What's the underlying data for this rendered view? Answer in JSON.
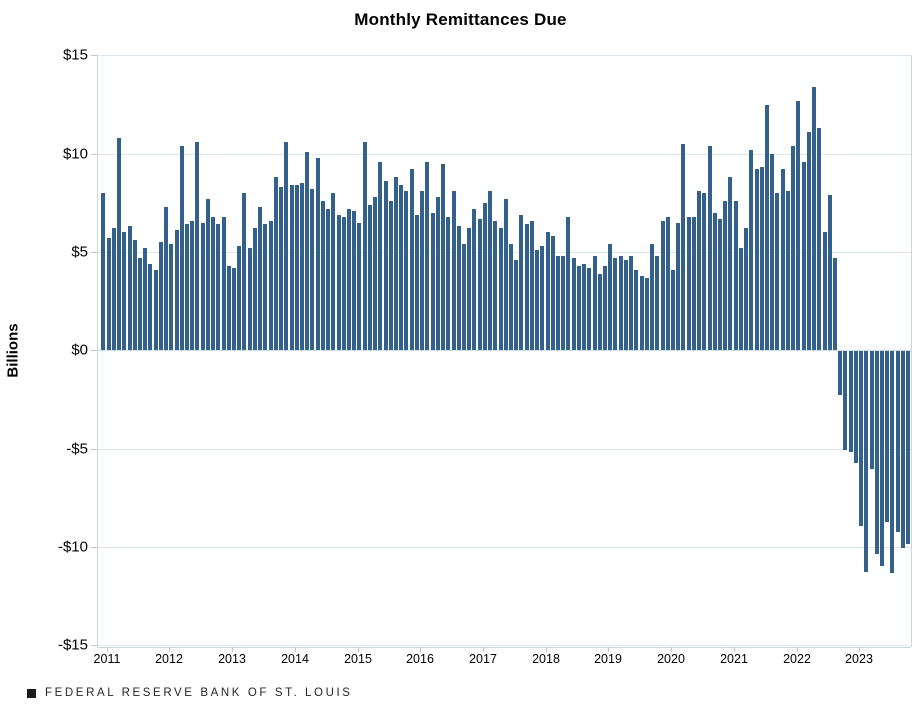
{
  "title": "Monthly Remittances Due",
  "y_axis": {
    "label": "Billions",
    "tick_labels": [
      "$15",
      "$10",
      "$5",
      "$0",
      "-$5",
      "-$10",
      "-$15"
    ],
    "tick_values": [
      15,
      10,
      5,
      0,
      -5,
      -10,
      -15
    ]
  },
  "x_axis": {
    "tick_labels": [
      "2011",
      "2012",
      "2013",
      "2014",
      "2015",
      "2016",
      "2017",
      "2018",
      "2019",
      "2020",
      "2021",
      "2022",
      "2023"
    ]
  },
  "footer": {
    "marker": "",
    "source": "FEDERAL RESERVE BANK OF ST. LOUIS"
  },
  "colors": {
    "bar": "#33618C",
    "grid": "#dce7ed",
    "frame": "#c9d7df",
    "text": "#000000",
    "background": "#ffffff"
  },
  "chart_data": {
    "type": "bar",
    "title": "Monthly Remittances Due",
    "xlabel": "",
    "ylabel": "Billions",
    "ylim": [
      -15,
      15
    ],
    "grid": "horizontal gridlines every 5 billion",
    "legend": "none",
    "units": "billions of dollars",
    "frequency": "monthly",
    "start_month": "2011-01",
    "end_month": "2023-11",
    "x_tick_labels": [
      "2011",
      "2012",
      "2013",
      "2014",
      "2015",
      "2016",
      "2017",
      "2018",
      "2019",
      "2020",
      "2021",
      "2022",
      "2023"
    ],
    "values": [
      8.0,
      5.7,
      6.2,
      10.8,
      6.0,
      6.3,
      5.6,
      4.7,
      5.2,
      4.4,
      4.1,
      5.5,
      7.3,
      5.4,
      6.1,
      10.4,
      6.4,
      6.6,
      10.6,
      6.5,
      7.7,
      6.8,
      6.4,
      6.8,
      4.3,
      4.2,
      5.3,
      8.0,
      5.2,
      6.2,
      7.3,
      6.4,
      6.6,
      8.8,
      8.3,
      10.6,
      8.4,
      8.4,
      8.5,
      10.1,
      8.2,
      9.8,
      7.6,
      7.2,
      8.0,
      6.9,
      6.8,
      7.2,
      7.1,
      6.5,
      10.6,
      7.4,
      7.8,
      9.6,
      8.6,
      7.6,
      8.8,
      8.4,
      8.1,
      9.2,
      6.9,
      8.1,
      9.6,
      7.0,
      7.8,
      9.5,
      6.8,
      8.1,
      6.3,
      5.4,
      6.2,
      7.2,
      6.7,
      7.5,
      8.1,
      6.6,
      6.2,
      7.7,
      5.4,
      4.6,
      6.9,
      6.4,
      6.6,
      5.1,
      5.3,
      6.0,
      5.8,
      4.8,
      4.8,
      6.8,
      4.7,
      4.3,
      4.4,
      4.2,
      4.8,
      3.9,
      4.3,
      5.4,
      4.7,
      4.8,
      4.6,
      4.8,
      4.1,
      3.8,
      3.7,
      5.4,
      4.8,
      6.6,
      6.8,
      4.1,
      6.5,
      10.5,
      6.8,
      6.8,
      8.1,
      8.0,
      10.4,
      7.0,
      6.7,
      7.6,
      8.8,
      7.6,
      5.2,
      6.2,
      10.2,
      9.2,
      9.3,
      12.5,
      10.0,
      8.0,
      9.2,
      8.1,
      10.4,
      12.7,
      9.6,
      11.1,
      13.4,
      11.3,
      6.0,
      7.9,
      4.7,
      -2.2,
      -5.0,
      -5.1,
      -5.7,
      -8.9,
      -11.2,
      -6.0,
      -10.3,
      -10.9,
      -8.7,
      -11.3,
      -9.2,
      -10.0,
      -9.8
    ]
  }
}
